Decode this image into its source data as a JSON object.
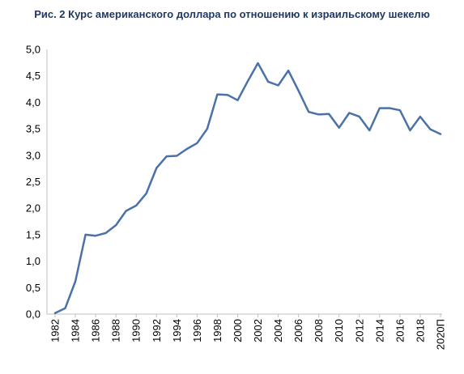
{
  "chart_data": {
    "type": "line",
    "title": "Рис. 2 Курс американского доллара по отношению к израильскому шекелю",
    "xlabel": "",
    "ylabel": "",
    "x": [
      "1982",
      "1983",
      "1984",
      "1985",
      "1986",
      "1987",
      "1988",
      "1989",
      "1990",
      "1991",
      "1992",
      "1993",
      "1994",
      "1995",
      "1996",
      "1997",
      "1998",
      "1999",
      "2000",
      "2001",
      "2002",
      "2003",
      "2004",
      "2005",
      "2006",
      "2007",
      "2008",
      "2009",
      "2010",
      "2011",
      "2012",
      "2013",
      "2014",
      "2015",
      "2016",
      "2017",
      "2018",
      "2019",
      "2020П"
    ],
    "x_tick_labels": [
      "1982",
      "1984",
      "1986",
      "1988",
      "1990",
      "1992",
      "1994",
      "1996",
      "1998",
      "2000",
      "2002",
      "2004",
      "2006",
      "2008",
      "2010",
      "2012",
      "2014",
      "2016",
      "2018",
      "2020П"
    ],
    "y_tick_labels": [
      "0,0",
      "0,5",
      "1,0",
      "1,5",
      "2,0",
      "2,5",
      "3,0",
      "3,5",
      "4,0",
      "4,5",
      "5,0"
    ],
    "ylim": [
      0,
      5
    ],
    "grid": false,
    "legend": "none",
    "series": [
      {
        "color": "#4a72a8",
        "values": [
          0.02,
          0.11,
          0.62,
          1.5,
          1.48,
          1.53,
          1.68,
          1.95,
          2.05,
          2.28,
          2.76,
          2.98,
          2.99,
          3.12,
          3.23,
          3.5,
          4.15,
          4.14,
          4.04,
          4.4,
          4.74,
          4.39,
          4.32,
          4.6,
          4.22,
          3.82,
          3.77,
          3.78,
          3.52,
          3.8,
          3.73,
          3.47,
          3.89,
          3.89,
          3.85,
          3.47,
          3.73,
          3.49,
          3.4
        ]
      }
    ]
  }
}
